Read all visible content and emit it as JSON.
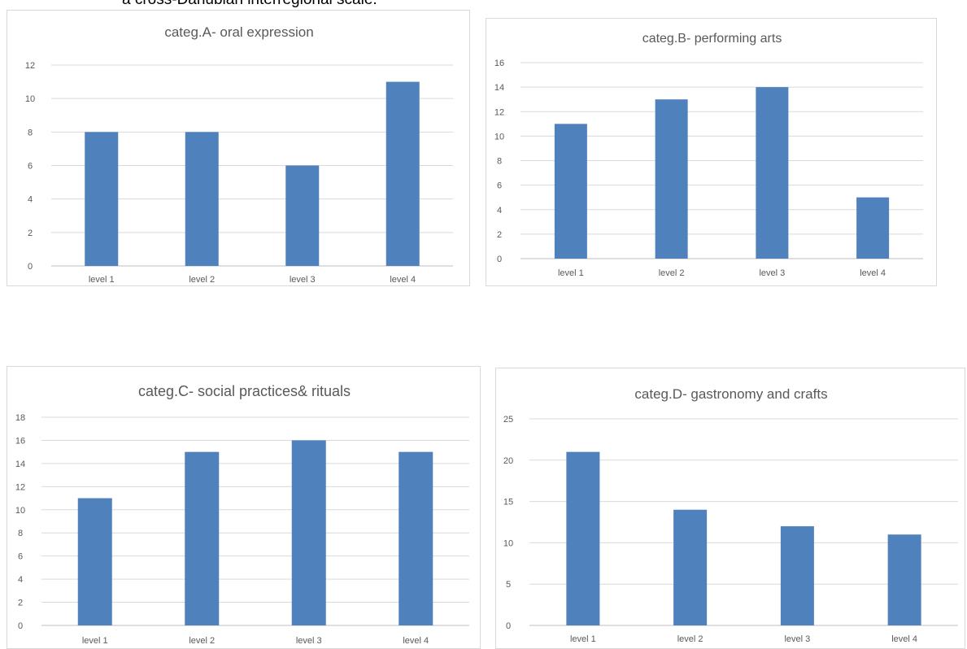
{
  "caption_fragment": "a cross-Danubian interregional scale.",
  "colors": {
    "bar": "#4f81bd",
    "gridline": "#d9d9d9",
    "axis": "#bfbfbf",
    "text": "#595959"
  },
  "chart_data": [
    {
      "type": "bar",
      "title": "categ.A- oral expression",
      "categories": [
        "level 1",
        "level 2",
        "level 3",
        "level 4"
      ],
      "values": [
        8,
        8,
        6,
        11
      ],
      "ylim": [
        0,
        12
      ],
      "yticks": [
        0,
        2,
        4,
        6,
        8,
        10,
        12
      ],
      "grid": true,
      "legend": "none"
    },
    {
      "type": "bar",
      "title": "categ.B- performing arts",
      "categories": [
        "level 1",
        "level 2",
        "level 3",
        "level 4"
      ],
      "values": [
        11,
        13,
        14,
        5
      ],
      "ylim": [
        0,
        16
      ],
      "yticks": [
        0,
        2,
        4,
        6,
        8,
        10,
        12,
        14,
        16
      ],
      "grid": true,
      "legend": "none"
    },
    {
      "type": "bar",
      "title": "categ.C- social practices& rituals",
      "categories": [
        "level 1",
        "level 2",
        "level 3",
        "level 4"
      ],
      "values": [
        11,
        15,
        16,
        15
      ],
      "ylim": [
        0,
        18
      ],
      "yticks": [
        0,
        2,
        4,
        6,
        8,
        10,
        12,
        14,
        16,
        18
      ],
      "grid": true,
      "legend": "none"
    },
    {
      "type": "bar",
      "title": "categ.D- gastronomy and crafts",
      "categories": [
        "level 1",
        "level 2",
        "level 3",
        "level 4"
      ],
      "values": [
        21,
        14,
        12,
        11
      ],
      "ylim": [
        0,
        25
      ],
      "yticks": [
        0,
        5,
        10,
        15,
        20,
        25
      ],
      "grid": true,
      "legend": "none"
    }
  ]
}
